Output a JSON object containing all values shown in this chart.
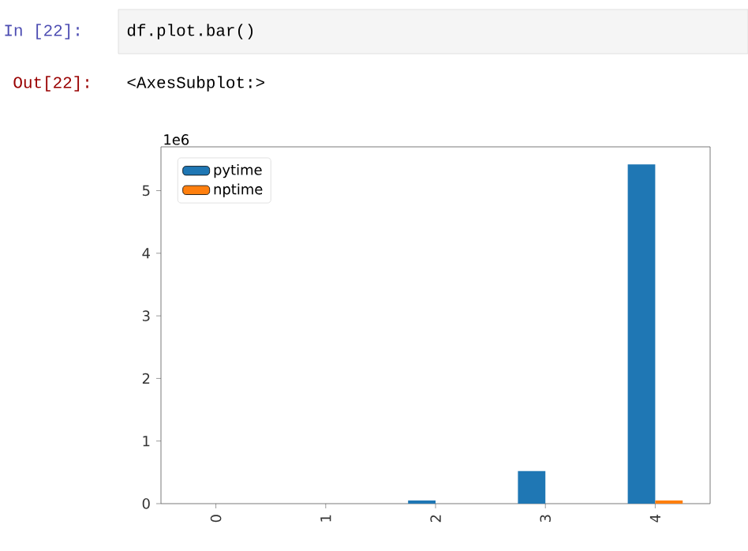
{
  "chart_data": {
    "type": "bar",
    "categories": [
      "0",
      "1",
      "2",
      "3",
      "4"
    ],
    "series": [
      {
        "name": "pytime",
        "color": "#1f77b4",
        "values": [
          0,
          0,
          0.05,
          0.52,
          5.42
        ]
      },
      {
        "name": "nptime",
        "color": "#ff7f0e",
        "values": [
          0,
          0,
          0,
          0,
          0.05
        ]
      }
    ],
    "ylim": [
      0,
      5.7
    ],
    "yticks": [
      0,
      1,
      2,
      3,
      4,
      5
    ],
    "legend": "top left",
    "grid": false,
    "annotations": [
      "1e6",
      "In  [22]:",
      "df.plot.bar()",
      "Out[22]:",
      "<AxesSubplot:>"
    ]
  }
}
